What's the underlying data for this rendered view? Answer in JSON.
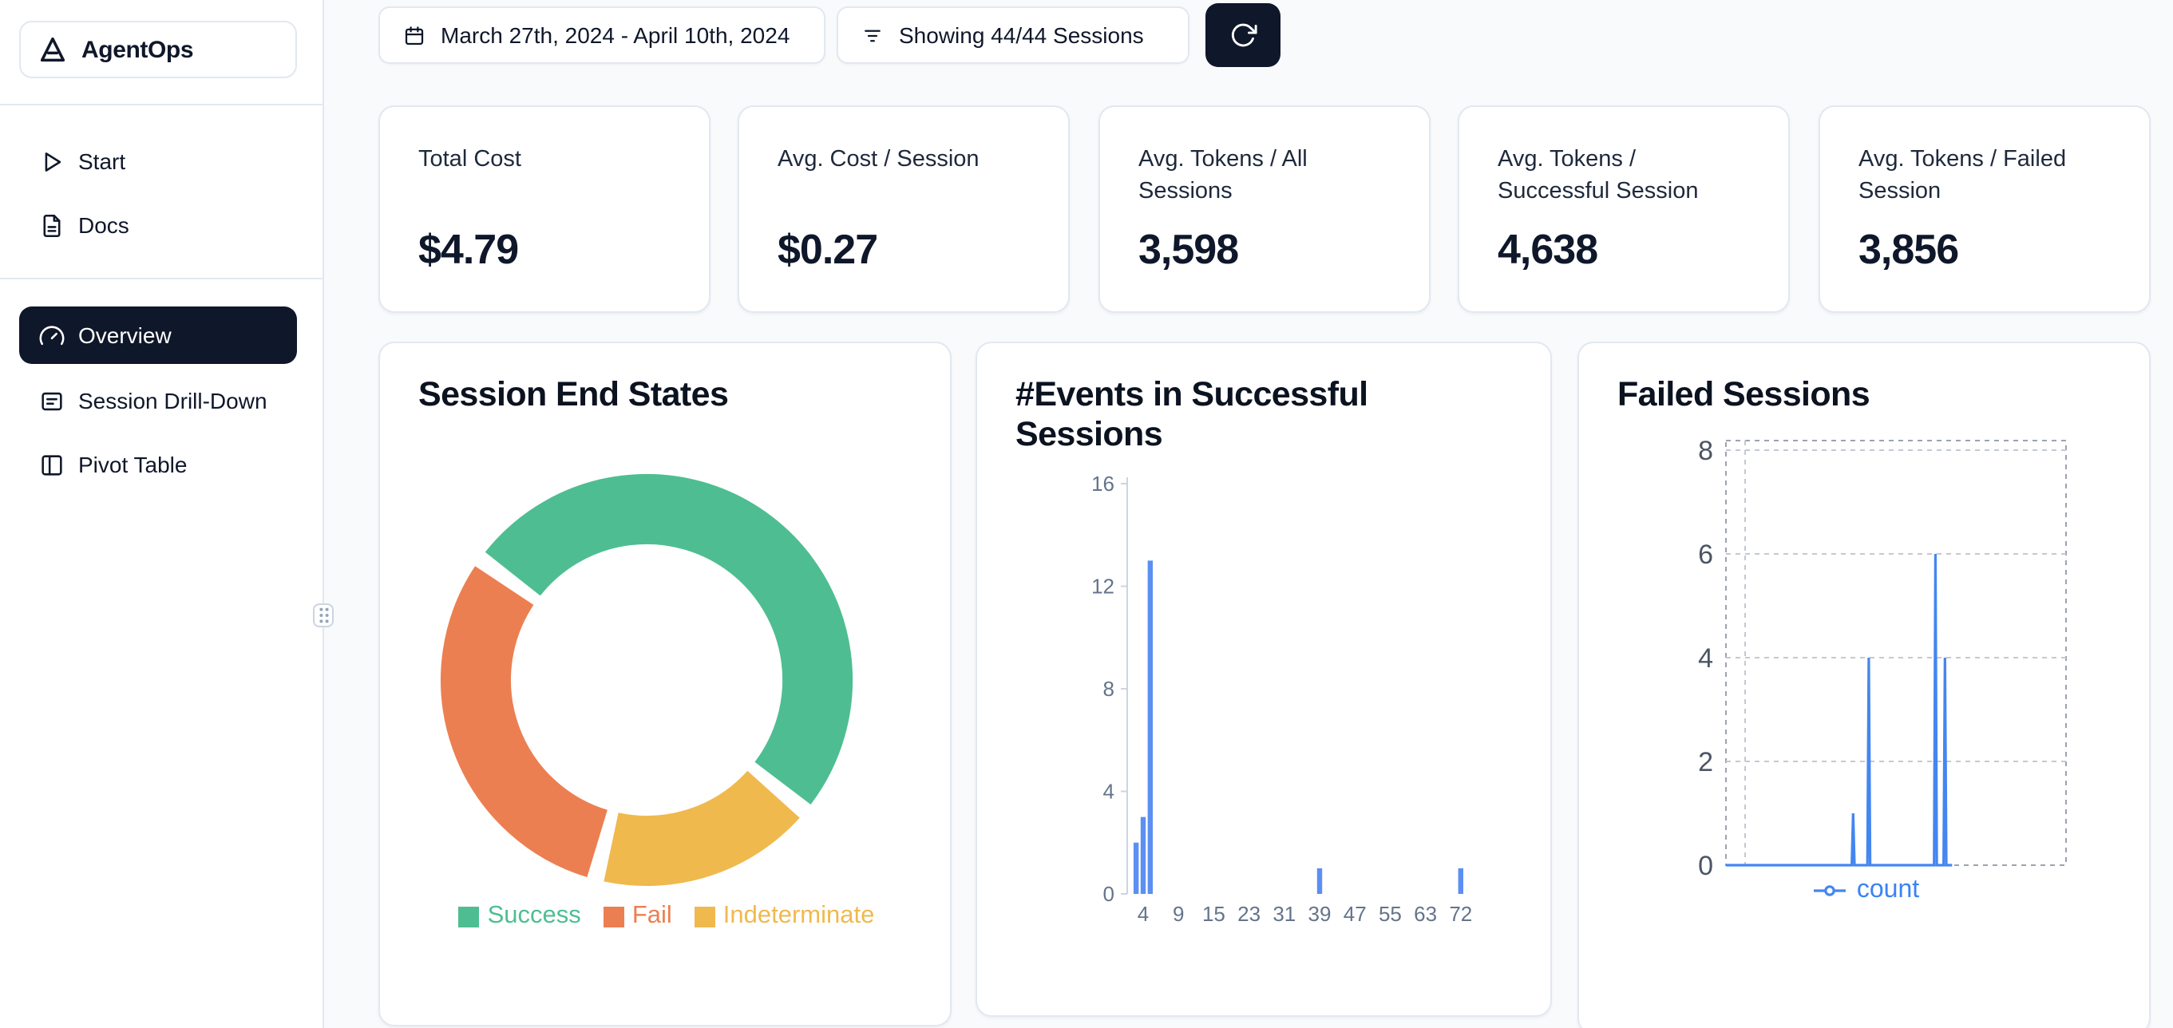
{
  "app": {
    "name": "AgentOps"
  },
  "sidebar": {
    "items": [
      {
        "label": "Start",
        "icon": "play-icon",
        "active": false
      },
      {
        "label": "Docs",
        "icon": "docs-icon",
        "active": false
      },
      {
        "label": "Overview",
        "icon": "gauge-icon",
        "active": true
      },
      {
        "label": "Session Drill-Down",
        "icon": "list-panel-icon",
        "active": false
      },
      {
        "label": "Pivot Table",
        "icon": "pivot-table-icon",
        "active": false
      }
    ]
  },
  "toolbar": {
    "date_range": "March 27th, 2024 - April 10th, 2024",
    "sessions_filter": "Showing 44/44 Sessions",
    "refresh_icon": "refresh-icon"
  },
  "stats": [
    {
      "label": "Total Cost",
      "value": "$4.79"
    },
    {
      "label": "Avg. Cost / Session",
      "value": "$0.27"
    },
    {
      "label": "Avg. Tokens / All Sessions",
      "value": "3,598"
    },
    {
      "label": "Avg. Tokens / Successful Session",
      "value": "4,638"
    },
    {
      "label": "Avg. Tokens / Failed Session",
      "value": "3,856"
    }
  ],
  "colors": {
    "accent_dark": "#0f172a",
    "success_green": "#4ebe92",
    "fail_orange": "#ec7f51",
    "indeterminate_yellow": "#f0b94e",
    "chart_blue": "#5b8ff2"
  },
  "chart_data": [
    {
      "type": "pie",
      "title": "Session End States",
      "donut": true,
      "start_angle_deg": -54,
      "slices": [
        {
          "label": "Success",
          "percent": 51,
          "color": "#4ebe92"
        },
        {
          "label": "Indeterminate",
          "percent": 18,
          "color": "#f0b94e"
        },
        {
          "label": "Fail",
          "percent": 31,
          "color": "#ec7f51"
        }
      ],
      "legend_order": [
        "Success",
        "Fail",
        "Indeterminate"
      ],
      "legend_position": "bottom"
    },
    {
      "type": "bar",
      "title": "#Events in Successful Sessions",
      "x_ticks": [
        4,
        9,
        15,
        23,
        31,
        39,
        47,
        55,
        63,
        72
      ],
      "y_ticks": [
        0,
        4,
        8,
        12,
        16
      ],
      "ylim": [
        0,
        16
      ],
      "grid": false,
      "bar_color": "#5b8ff2",
      "bars": [
        {
          "x": 3,
          "count": 2
        },
        {
          "x": 4,
          "count": 3
        },
        {
          "x": 5,
          "count": 13
        },
        {
          "x": 39,
          "count": 1
        },
        {
          "x": 72,
          "count": 1
        }
      ]
    },
    {
      "type": "line",
      "title": "Failed Sessions",
      "y_ticks": [
        0,
        2,
        4,
        6,
        8
      ],
      "ylim": [
        0,
        8
      ],
      "xlim": [
        0,
        100
      ],
      "grid": "dashed",
      "legend_position": "bottom",
      "series": [
        {
          "name": "count",
          "color": "#4486f0",
          "points": [
            [
              0,
              0
            ],
            [
              37,
              0
            ],
            [
              37.4,
              1
            ],
            [
              37.8,
              0
            ],
            [
              41.6,
              0
            ],
            [
              42,
              4
            ],
            [
              42.4,
              0
            ],
            [
              61.2,
              0
            ],
            [
              61.6,
              6
            ],
            [
              62,
              0
            ],
            [
              64,
              0
            ],
            [
              64.4,
              4
            ],
            [
              64.8,
              0
            ],
            [
              66.5,
              0
            ]
          ]
        }
      ]
    }
  ]
}
